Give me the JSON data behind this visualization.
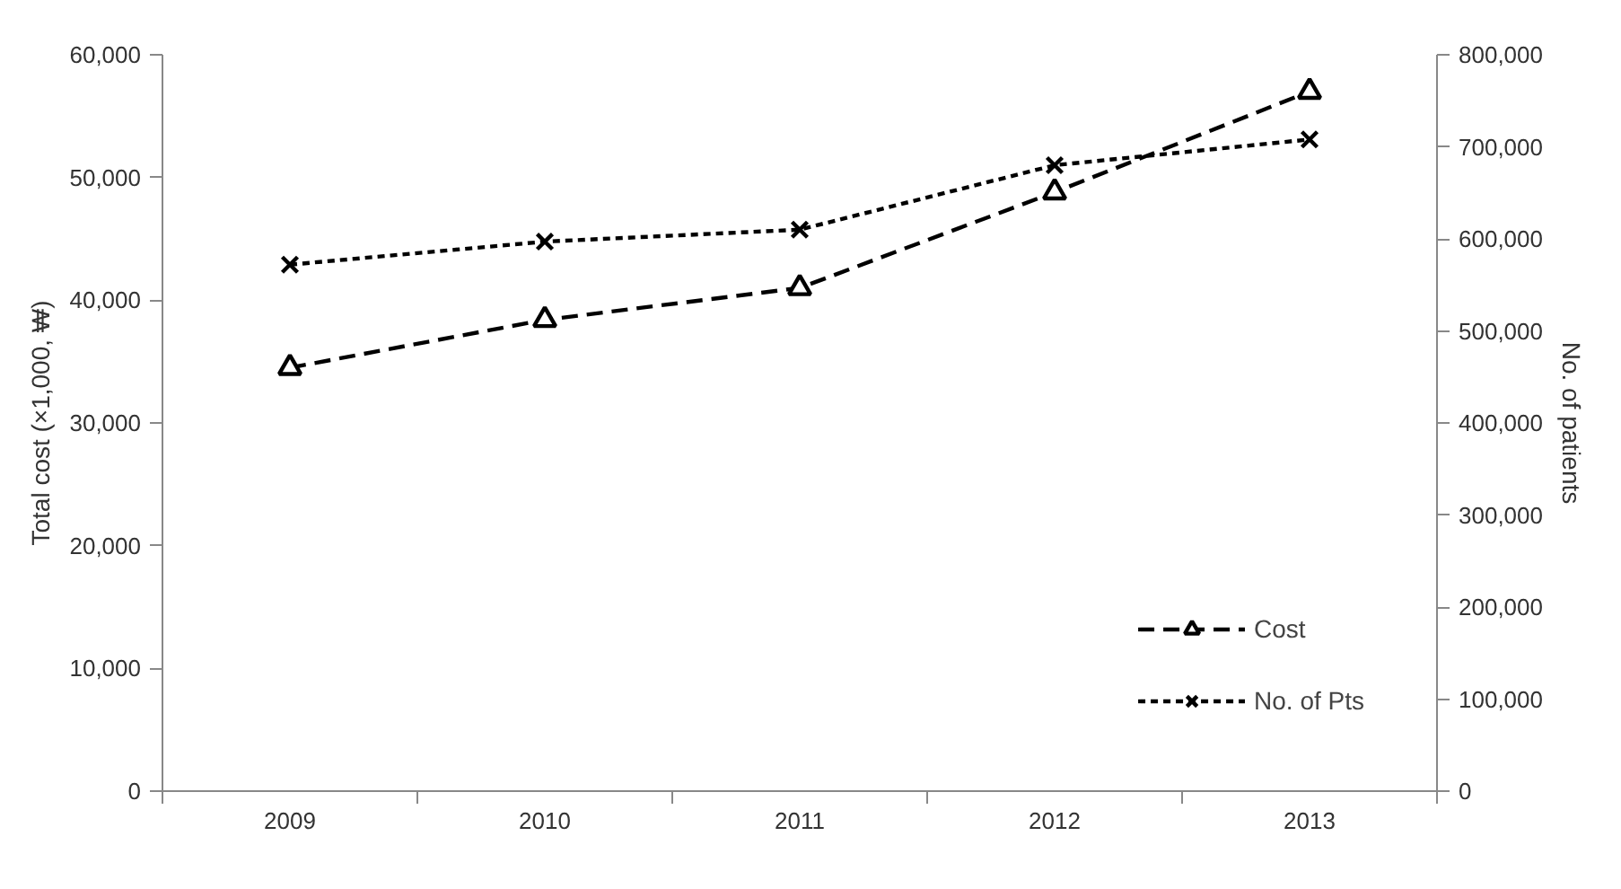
{
  "chart_data": {
    "type": "line",
    "ylabel": "Total cost (×1,000, ₩)",
    "y2label": "No. of patients",
    "categories": [
      "2009",
      "2010",
      "2011",
      "2012",
      "2013"
    ],
    "series": [
      {
        "name": "Cost",
        "color": "#000000",
        "marker": "triangle",
        "line_style": "dashed",
        "values": [
          34500,
          38400,
          41000,
          48800,
          57000
        ]
      },
      {
        "name": "No. of Pts",
        "color": "#000000",
        "marker": "cross",
        "line_style": "dotted",
        "axis": "y2",
        "values": [
          572000,
          597000,
          610000,
          680000,
          708000
        ]
      }
    ],
    "ylim": [
      0,
      60000
    ],
    "yticks": [
      {
        "value": 0,
        "label": "0"
      },
      {
        "value": 10000,
        "label": "10,000"
      },
      {
        "value": 20000,
        "label": "20,000"
      },
      {
        "value": 30000,
        "label": "30,000"
      },
      {
        "value": 40000,
        "label": "40,000"
      },
      {
        "value": 50000,
        "label": "50,000"
      },
      {
        "value": 60000,
        "label": "60,000"
      }
    ],
    "y2lim": [
      0,
      800000
    ],
    "y2ticks": [
      {
        "value": 0,
        "label": "0"
      },
      {
        "value": 100000,
        "label": "100,000"
      },
      {
        "value": 200000,
        "label": "200,000"
      },
      {
        "value": 300000,
        "label": "300,000"
      },
      {
        "value": 400000,
        "label": "400,000"
      },
      {
        "value": 500000,
        "label": "500,000"
      },
      {
        "value": 600000,
        "label": "600,000"
      },
      {
        "value": 700000,
        "label": "700,000"
      },
      {
        "value": 800000,
        "label": "800,000"
      }
    ],
    "grid": false,
    "legend": "bottom right"
  }
}
